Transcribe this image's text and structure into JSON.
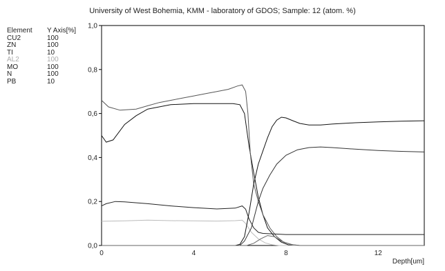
{
  "chart_data": {
    "type": "line",
    "title": "University of West Bohemia, KMM - laboratory of GDOS;  Sample: 12 (atom. %)",
    "xlabel": "Depth[um]",
    "ylabel": "",
    "xlim": [
      0,
      14
    ],
    "ylim": [
      0,
      1.0
    ],
    "x_ticks": [
      "0",
      "4",
      "8",
      "12"
    ],
    "y_ticks": [
      "0,0",
      "0,2",
      "0,4",
      "0,6",
      "0,8",
      "1,0"
    ],
    "legend_header": {
      "element": "Element",
      "axis": "Y Axis[%]"
    },
    "legend": [
      {
        "element": "CU2",
        "axis": "100"
      },
      {
        "element": "ZN",
        "axis": "100"
      },
      {
        "element": "TI",
        "axis": "10"
      },
      {
        "element": "AL2",
        "axis": "100"
      },
      {
        "element": "MO",
        "axis": "100"
      },
      {
        "element": "N",
        "axis": "100"
      },
      {
        "element": "PB",
        "axis": "10"
      }
    ],
    "series": [
      {
        "color": "#111111",
        "points": [
          [
            0,
            0.5
          ],
          [
            0.2,
            0.47
          ],
          [
            0.5,
            0.48
          ],
          [
            1,
            0.55
          ],
          [
            1.5,
            0.59
          ],
          [
            2,
            0.62
          ],
          [
            3,
            0.64
          ],
          [
            4,
            0.645
          ],
          [
            5,
            0.645
          ],
          [
            5.7,
            0.645
          ],
          [
            6.0,
            0.64
          ],
          [
            6.2,
            0.6
          ],
          [
            6.4,
            0.45
          ],
          [
            6.6,
            0.33
          ],
          [
            6.8,
            0.22
          ],
          [
            7.0,
            0.14
          ],
          [
            7.2,
            0.08
          ],
          [
            7.5,
            0.04
          ],
          [
            7.8,
            0.015
          ],
          [
            8.1,
            0.003
          ],
          [
            8.4,
            0.0
          ],
          [
            14,
            0.0
          ]
        ]
      },
      {
        "color": "#555555",
        "points": [
          [
            0,
            0.66
          ],
          [
            0.3,
            0.63
          ],
          [
            0.8,
            0.615
          ],
          [
            1.5,
            0.62
          ],
          [
            2,
            0.635
          ],
          [
            2.5,
            0.65
          ],
          [
            3,
            0.66
          ],
          [
            3.5,
            0.67
          ],
          [
            4,
            0.68
          ],
          [
            4.5,
            0.69
          ],
          [
            5,
            0.7
          ],
          [
            5.5,
            0.71
          ],
          [
            5.9,
            0.725
          ],
          [
            6.1,
            0.73
          ],
          [
            6.25,
            0.7
          ],
          [
            6.35,
            0.6
          ],
          [
            6.45,
            0.42
          ],
          [
            6.6,
            0.28
          ],
          [
            6.8,
            0.2
          ],
          [
            7.0,
            0.14
          ],
          [
            7.3,
            0.08
          ],
          [
            7.6,
            0.04
          ],
          [
            7.9,
            0.015
          ],
          [
            8.3,
            0.003
          ],
          [
            8.6,
            0.0
          ],
          [
            14,
            0.0
          ]
        ]
      },
      {
        "color": "#222222",
        "points": [
          [
            0,
            0.18
          ],
          [
            0.2,
            0.19
          ],
          [
            0.6,
            0.2
          ],
          [
            1,
            0.198
          ],
          [
            2,
            0.19
          ],
          [
            3,
            0.18
          ],
          [
            4,
            0.172
          ],
          [
            5,
            0.166
          ],
          [
            5.8,
            0.17
          ],
          [
            6.1,
            0.18
          ],
          [
            6.25,
            0.165
          ],
          [
            6.4,
            0.12
          ],
          [
            6.6,
            0.08
          ],
          [
            6.8,
            0.06
          ],
          [
            7.0,
            0.055
          ],
          [
            8,
            0.05
          ],
          [
            10,
            0.05
          ],
          [
            14,
            0.05
          ]
        ]
      },
      {
        "color": "#bbbbbb",
        "points": [
          [
            0,
            0.11
          ],
          [
            1,
            0.112
          ],
          [
            2,
            0.115
          ],
          [
            3,
            0.113
          ],
          [
            4,
            0.112
          ],
          [
            5,
            0.111
          ],
          [
            5.8,
            0.113
          ],
          [
            6.1,
            0.115
          ],
          [
            6.25,
            0.1
          ],
          [
            6.5,
            0.06
          ],
          [
            6.8,
            0.03
          ],
          [
            7.1,
            0.012
          ],
          [
            7.4,
            0.003
          ],
          [
            7.7,
            0.0
          ],
          [
            14,
            0.0
          ]
        ]
      },
      {
        "color": "#111111",
        "points": [
          [
            0,
            0.0
          ],
          [
            5.8,
            0.0
          ],
          [
            6.0,
            0.005
          ],
          [
            6.2,
            0.04
          ],
          [
            6.4,
            0.15
          ],
          [
            6.6,
            0.28
          ],
          [
            6.8,
            0.37
          ],
          [
            7.0,
            0.43
          ],
          [
            7.2,
            0.49
          ],
          [
            7.4,
            0.54
          ],
          [
            7.6,
            0.57
          ],
          [
            7.8,
            0.583
          ],
          [
            8.0,
            0.58
          ],
          [
            8.3,
            0.567
          ],
          [
            8.6,
            0.555
          ],
          [
            9.0,
            0.548
          ],
          [
            9.5,
            0.548
          ],
          [
            10,
            0.552
          ],
          [
            11,
            0.558
          ],
          [
            12,
            0.562
          ],
          [
            13,
            0.565
          ],
          [
            14,
            0.567
          ]
        ]
      },
      {
        "color": "#333333",
        "points": [
          [
            0,
            0.0
          ],
          [
            6.0,
            0.0
          ],
          [
            6.2,
            0.02
          ],
          [
            6.5,
            0.08
          ],
          [
            6.8,
            0.2
          ],
          [
            7.0,
            0.26
          ],
          [
            7.3,
            0.32
          ],
          [
            7.6,
            0.37
          ],
          [
            8.0,
            0.41
          ],
          [
            8.5,
            0.435
          ],
          [
            9.0,
            0.445
          ],
          [
            9.5,
            0.448
          ],
          [
            10,
            0.445
          ],
          [
            11,
            0.438
          ],
          [
            12,
            0.432
          ],
          [
            13,
            0.428
          ],
          [
            14,
            0.425
          ]
        ]
      },
      {
        "color": "#666666",
        "points": [
          [
            0,
            0.0
          ],
          [
            6.3,
            0.0
          ],
          [
            6.6,
            0.01
          ],
          [
            6.9,
            0.03
          ],
          [
            7.2,
            0.045
          ],
          [
            7.5,
            0.04
          ],
          [
            7.8,
            0.02
          ],
          [
            8.2,
            0.005
          ],
          [
            8.6,
            0.0
          ],
          [
            14,
            0.0
          ]
        ]
      }
    ]
  }
}
